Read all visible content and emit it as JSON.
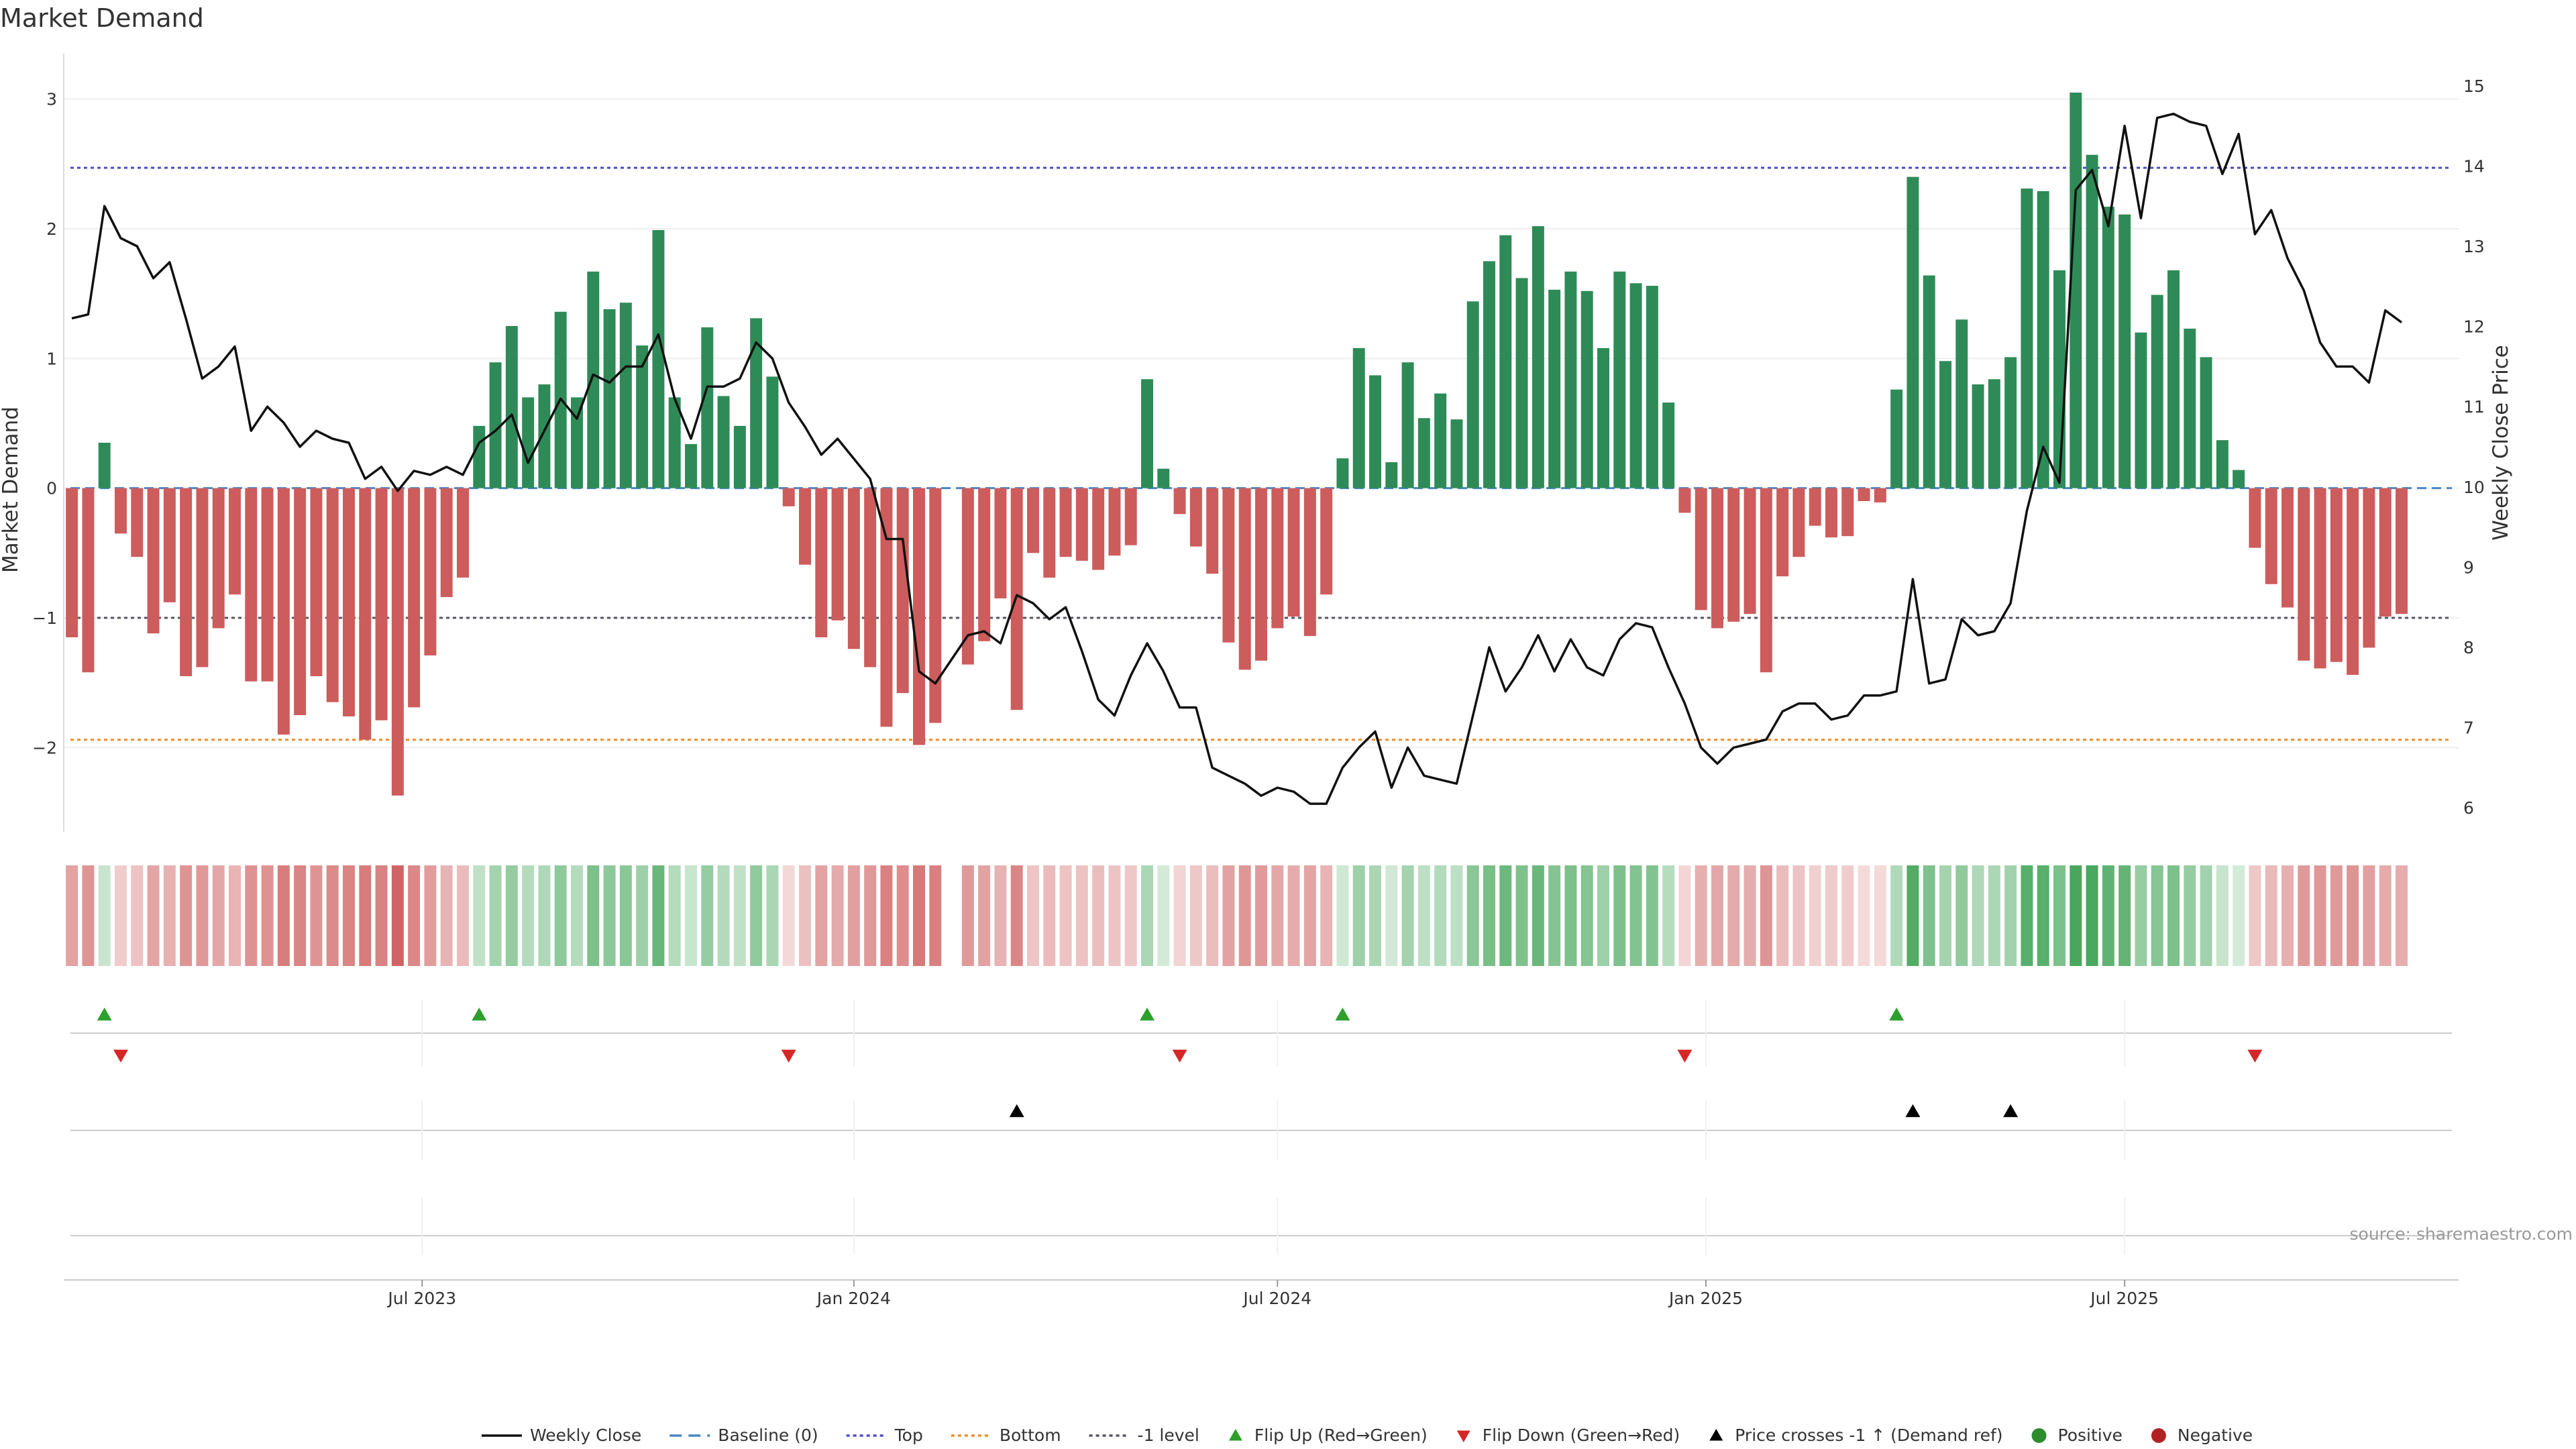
{
  "chart_data": {
    "type": "bar",
    "title": "Market Demand",
    "ylabel": "Market Demand",
    "y2label": "Weekly Close Price",
    "ylim": [
      -2.65,
      3.35
    ],
    "y2lim": [
      5.7,
      15.4
    ],
    "yticks": [
      -2,
      -1,
      0,
      1,
      2,
      3
    ],
    "y2ticks": [
      6,
      7,
      8,
      9,
      10,
      11,
      12,
      13,
      14,
      15
    ],
    "xlim": [
      0,
      147
    ],
    "x_ticks": [
      {
        "label": "Jul 2023",
        "x": 22
      },
      {
        "label": "Jan 2024",
        "x": 48.5
      },
      {
        "label": "Jul 2024",
        "x": 74.5
      },
      {
        "label": "Jan 2025",
        "x": 100.8
      },
      {
        "label": "Jul 2025",
        "x": 126.5
      }
    ],
    "bars": [
      -1.15,
      -1.42,
      0.35,
      -0.35,
      -0.53,
      -1.12,
      -0.88,
      -1.45,
      -1.38,
      -1.08,
      -0.82,
      -1.49,
      -1.49,
      -1.9,
      -1.75,
      -1.45,
      -1.65,
      -1.76,
      -1.94,
      -1.79,
      -2.37,
      -1.69,
      -1.29,
      -0.84,
      -0.69,
      0.48,
      0.97,
      1.25,
      0.7,
      0.8,
      1.36,
      0.7,
      1.67,
      1.38,
      1.43,
      1.1,
      1.99,
      0.7,
      0.34,
      1.24,
      0.71,
      0.48,
      1.31,
      0.86,
      -0.14,
      -0.59,
      -1.15,
      -1.02,
      -1.24,
      -1.38,
      -1.84,
      -1.58,
      -1.98,
      -1.81,
      null,
      -1.36,
      -1.18,
      -0.85,
      -1.71,
      -0.5,
      -0.69,
      -0.53,
      -0.56,
      -0.63,
      -0.52,
      -0.44,
      0.84,
      0.15,
      -0.2,
      -0.45,
      -0.66,
      -1.19,
      -1.4,
      -1.33,
      -1.08,
      -0.99,
      -1.14,
      -0.82,
      0.23,
      1.08,
      0.87,
      0.2,
      0.97,
      0.54,
      0.73,
      0.53,
      1.44,
      1.75,
      1.95,
      1.62,
      2.02,
      1.53,
      1.67,
      1.52,
      1.08,
      1.67,
      1.58,
      1.56,
      0.66,
      -0.19,
      -0.94,
      -1.08,
      -1.03,
      -0.97,
      -1.42,
      -0.68,
      -0.53,
      -0.29,
      -0.38,
      -0.37,
      -0.1,
      -0.11,
      0.76,
      2.4,
      1.64,
      0.98,
      1.3,
      0.8,
      0.84,
      1.01,
      2.31,
      2.29,
      1.68,
      3.05,
      2.57,
      2.17,
      2.11,
      1.2,
      1.49,
      1.68,
      1.23,
      1.01,
      0.37,
      0.14,
      -0.46,
      -0.74,
      -0.92,
      -1.33,
      -1.39,
      -1.34,
      -1.44,
      -1.23,
      -0.99,
      -0.97
    ],
    "price": [
      [
        0,
        12.1
      ],
      [
        1,
        12.15
      ],
      [
        2,
        13.5
      ],
      [
        3,
        13.1
      ],
      [
        4,
        13.0
      ],
      [
        5,
        12.6
      ],
      [
        6,
        12.8
      ],
      [
        7,
        12.1
      ],
      [
        8,
        11.35
      ],
      [
        9,
        11.5
      ],
      [
        10,
        11.75
      ],
      [
        11,
        10.7
      ],
      [
        12,
        11.0
      ],
      [
        13,
        10.8
      ],
      [
        14,
        10.5
      ],
      [
        15,
        10.7
      ],
      [
        16,
        10.6
      ],
      [
        17,
        10.55
      ],
      [
        18,
        10.1
      ],
      [
        19,
        10.25
      ],
      [
        20,
        9.95
      ],
      [
        21,
        10.2
      ],
      [
        22,
        10.15
      ],
      [
        23,
        10.25
      ],
      [
        24,
        10.15
      ],
      [
        25,
        10.55
      ],
      [
        26,
        10.7
      ],
      [
        27,
        10.9
      ],
      [
        28,
        10.3
      ],
      [
        29,
        10.7
      ],
      [
        30,
        11.1
      ],
      [
        31,
        10.85
      ],
      [
        32,
        11.4
      ],
      [
        33,
        11.3
      ],
      [
        34,
        11.5
      ],
      [
        35,
        11.5
      ],
      [
        36,
        11.9
      ],
      [
        37,
        11.1
      ],
      [
        38,
        10.6
      ],
      [
        39,
        11.25
      ],
      [
        40,
        11.25
      ],
      [
        41,
        11.35
      ],
      [
        42,
        11.8
      ],
      [
        43,
        11.6
      ],
      [
        44,
        11.05
      ],
      [
        45,
        10.75
      ],
      [
        46,
        10.4
      ],
      [
        47,
        10.6
      ],
      [
        48,
        10.35
      ],
      [
        49,
        10.1
      ],
      [
        50,
        9.35
      ],
      [
        51,
        9.35
      ],
      [
        52,
        7.7
      ],
      [
        53,
        7.55
      ],
      [
        54,
        7.85
      ],
      [
        55,
        8.15
      ],
      [
        56,
        8.2
      ],
      [
        57,
        8.05
      ],
      [
        58,
        8.65
      ],
      [
        59,
        8.55
      ],
      [
        60,
        8.35
      ],
      [
        61,
        8.5
      ],
      [
        62,
        7.95
      ],
      [
        63,
        7.35
      ],
      [
        64,
        7.15
      ],
      [
        65,
        7.65
      ],
      [
        66,
        8.05
      ],
      [
        67,
        7.7
      ],
      [
        68,
        7.25
      ],
      [
        69,
        7.25
      ],
      [
        70,
        6.5
      ],
      [
        71,
        6.4
      ],
      [
        72,
        6.3
      ],
      [
        73,
        6.15
      ],
      [
        74,
        6.25
      ],
      [
        75,
        6.2
      ],
      [
        76,
        6.05
      ],
      [
        77,
        6.05
      ],
      [
        78,
        6.5
      ],
      [
        79,
        6.75
      ],
      [
        80,
        6.95
      ],
      [
        81,
        6.25
      ],
      [
        82,
        6.75
      ],
      [
        83,
        6.4
      ],
      [
        84,
        6.35
      ],
      [
        85,
        6.3
      ],
      [
        86,
        7.15
      ],
      [
        87,
        8.0
      ],
      [
        88,
        7.45
      ],
      [
        89,
        7.75
      ],
      [
        90,
        8.15
      ],
      [
        91,
        7.7
      ],
      [
        92,
        8.1
      ],
      [
        93,
        7.75
      ],
      [
        94,
        7.65
      ],
      [
        95,
        8.1
      ],
      [
        96,
        8.3
      ],
      [
        97,
        8.25
      ],
      [
        98,
        7.75
      ],
      [
        99,
        7.3
      ],
      [
        100,
        6.75
      ],
      [
        101,
        6.55
      ],
      [
        102,
        6.75
      ],
      [
        103,
        6.8
      ],
      [
        104,
        6.85
      ],
      [
        105,
        7.2
      ],
      [
        106,
        7.3
      ],
      [
        107,
        7.3
      ],
      [
        108,
        7.1
      ],
      [
        109,
        7.15
      ],
      [
        110,
        7.4
      ],
      [
        111,
        7.4
      ],
      [
        112,
        7.45
      ],
      [
        113,
        8.85
      ],
      [
        114,
        7.55
      ],
      [
        115,
        7.6
      ],
      [
        116,
        8.35
      ],
      [
        117,
        8.15
      ],
      [
        118,
        8.2
      ],
      [
        119,
        8.55
      ],
      [
        120,
        9.7
      ],
      [
        121,
        10.5
      ],
      [
        122,
        10.05
      ],
      [
        123,
        13.7
      ],
      [
        124,
        13.95
      ],
      [
        125,
        13.25
      ],
      [
        126,
        14.5
      ],
      [
        127,
        13.35
      ],
      [
        128,
        14.6
      ],
      [
        129,
        14.65
      ],
      [
        130,
        14.55
      ],
      [
        131,
        14.5
      ],
      [
        132,
        13.9
      ],
      [
        133,
        14.4
      ],
      [
        134,
        13.15
      ],
      [
        135,
        13.45
      ],
      [
        136,
        12.85
      ],
      [
        137,
        12.45
      ],
      [
        138,
        11.8
      ],
      [
        139,
        11.5
      ],
      [
        140,
        11.5
      ],
      [
        141,
        11.3
      ],
      [
        142,
        12.2
      ],
      [
        143,
        12.05
      ]
    ],
    "h_lines": [
      {
        "name": "Top",
        "value": 2.47,
        "color": "#4b4bc8"
      },
      {
        "name": "Bottom",
        "value": -1.94,
        "color": "#f08c28"
      },
      {
        "name": "-1 level",
        "value": -1.0,
        "color": "#555566"
      },
      {
        "name": "Baseline (0)",
        "value": 0,
        "color": "#4a86c5"
      }
    ],
    "flip_up_weeks": [
      2,
      25,
      66,
      78,
      112
    ],
    "flip_down_weeks": [
      3,
      44,
      68,
      99,
      134
    ],
    "price_cross_weeks": [
      58,
      113,
      119
    ],
    "legend": [
      {
        "label": "Weekly Close",
        "style": "line",
        "color": "#111111"
      },
      {
        "label": "Baseline (0)",
        "style": "dashed",
        "color": "#4a86c5"
      },
      {
        "label": "Top",
        "style": "dotted",
        "color": "#4b4bc8"
      },
      {
        "label": "Bottom",
        "style": "dotted",
        "color": "#f08c28"
      },
      {
        "label": "-1 level",
        "style": "dotted",
        "color": "#555566"
      },
      {
        "label": "Flip Up (Red→Green)",
        "style": "tri-up",
        "color": "#2ca02c"
      },
      {
        "label": "Flip Down (Green→Red)",
        "style": "tri-down",
        "color": "#d62728"
      },
      {
        "label": "Price crosses -1 ↑ (Demand ref)",
        "style": "tri-up",
        "color": "#000000"
      },
      {
        "label": "Positive",
        "style": "dot",
        "color": "#2e8b2e"
      },
      {
        "label": "Negative",
        "style": "dot",
        "color": "#b22222"
      }
    ],
    "colors": {
      "positive": "#2e8b57",
      "negative": "#cd5c5c",
      "price": "#111111"
    }
  },
  "source_text": "source: sharemaestro.com"
}
